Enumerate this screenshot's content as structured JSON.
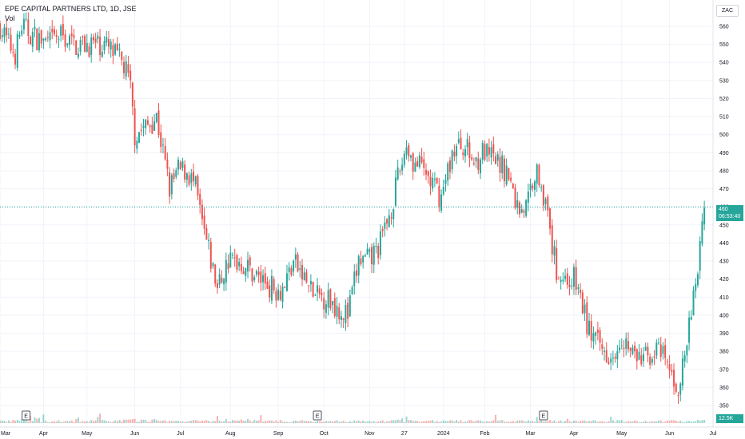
{
  "header": {
    "title": "EPE CAPITAL PARTNERS LTD, 1D, JSE",
    "volume_label": "Vol",
    "currency": "ZAC"
  },
  "last_price": {
    "value": "460",
    "countdown": "06:53:40"
  },
  "volume_readout": "12.5K",
  "colors": {
    "up": "#26a69a",
    "down": "#ef5350",
    "grid": "#f0f3fa",
    "text": "#131722"
  },
  "chart_data": {
    "type": "candlestick",
    "y_axis": {
      "min": 345,
      "max": 565,
      "ticks": [
        350,
        360,
        370,
        380,
        390,
        400,
        410,
        420,
        430,
        440,
        450,
        460,
        470,
        480,
        490,
        500,
        510,
        520,
        530,
        540,
        550,
        560
      ]
    },
    "x_axis": {
      "labels": [
        "Mar",
        "Apr",
        "May",
        "Jun",
        "Jul",
        "Aug",
        "Sep",
        "Oct",
        "Nov",
        "27",
        "2024",
        "Feb",
        "Mar",
        "Apr",
        "May",
        "Jun",
        "Jul"
      ],
      "positions": [
        0,
        20,
        40,
        62,
        83,
        106,
        128,
        149,
        170,
        186,
        204,
        223,
        244,
        264,
        286,
        308,
        328
      ]
    },
    "earnings_markers": [
      {
        "x": 12,
        "label": "E"
      },
      {
        "x": 146,
        "label": "E"
      },
      {
        "x": 250,
        "label": "E"
      }
    ],
    "last_price": 460,
    "anchors": [
      [
        0,
        560,
        0.6
      ],
      [
        4,
        550,
        0.5
      ],
      [
        7,
        545,
        1.0
      ],
      [
        10,
        560,
        0.8
      ],
      [
        15,
        555,
        1.8
      ],
      [
        22,
        550,
        0.5
      ],
      [
        28,
        555,
        0.5
      ],
      [
        34,
        550,
        0.6
      ],
      [
        40,
        550,
        0.6
      ],
      [
        48,
        550,
        0.6
      ],
      [
        52,
        545,
        0.8
      ],
      [
        56,
        540,
        0.8
      ],
      [
        58,
        535,
        0.8
      ],
      [
        60,
        525,
        0.8
      ],
      [
        62,
        500,
        0.9
      ],
      [
        68,
        505,
        0.9
      ],
      [
        72,
        510,
        0.8
      ],
      [
        75,
        490,
        0.6
      ],
      [
        78,
        470,
        0.6
      ],
      [
        82,
        480,
        0.6
      ],
      [
        86,
        480,
        0.5
      ],
      [
        90,
        470,
        0.6
      ],
      [
        93,
        450,
        0.6
      ],
      [
        97,
        430,
        0.6
      ],
      [
        100,
        415,
        0.6
      ],
      [
        105,
        430,
        0.8
      ],
      [
        110,
        430,
        0.6
      ],
      [
        115,
        425,
        1.0
      ],
      [
        120,
        420,
        0.5
      ],
      [
        126,
        415,
        0.6
      ],
      [
        130,
        415,
        0.6
      ],
      [
        135,
        430,
        0.6
      ],
      [
        140,
        420,
        0.6
      ],
      [
        145,
        410,
        0.5
      ],
      [
        150,
        410,
        0.5
      ],
      [
        155,
        405,
        0.5
      ],
      [
        160,
        400,
        0.5
      ],
      [
        165,
        430,
        0.6
      ],
      [
        170,
        430,
        0.4
      ],
      [
        175,
        440,
        0.5
      ],
      [
        180,
        460,
        0.6
      ],
      [
        184,
        480,
        0.7
      ],
      [
        187,
        495,
        1.6
      ],
      [
        190,
        485,
        0.8
      ],
      [
        195,
        480,
        0.7
      ],
      [
        200,
        470,
        0.6
      ],
      [
        203,
        465,
        0.5
      ],
      [
        208,
        490,
        0.6
      ],
      [
        213,
        495,
        0.6
      ],
      [
        218,
        485,
        0.6
      ],
      [
        222,
        490,
        0.5
      ],
      [
        228,
        485,
        0.6
      ],
      [
        233,
        480,
        0.5
      ],
      [
        238,
        460,
        0.6
      ],
      [
        242,
        460,
        0.5
      ],
      [
        246,
        480,
        0.6
      ],
      [
        249,
        475,
        0.6
      ],
      [
        251,
        460,
        0.6
      ],
      [
        253,
        445,
        0.6
      ],
      [
        256,
        425,
        0.6
      ],
      [
        260,
        420,
        0.5
      ],
      [
        264,
        420,
        0.5
      ],
      [
        267,
        410,
        0.5
      ],
      [
        270,
        395,
        0.5
      ],
      [
        274,
        385,
        0.6
      ],
      [
        278,
        380,
        0.5
      ],
      [
        282,
        380,
        0.5
      ],
      [
        286,
        390,
        0.6
      ],
      [
        290,
        380,
        0.5
      ],
      [
        294,
        375,
        0.5
      ],
      [
        298,
        378,
        0.6
      ],
      [
        302,
        380,
        0.5
      ],
      [
        306,
        375,
        0.5
      ],
      [
        309,
        365,
        0.8
      ],
      [
        312,
        360,
        0.5
      ],
      [
        314,
        370,
        0.6
      ],
      [
        316,
        385,
        0.8
      ],
      [
        318,
        400,
        1.0
      ],
      [
        320,
        420,
        0.6
      ],
      [
        321,
        425,
        0.7
      ],
      [
        322,
        440,
        0.6
      ],
      [
        323,
        455,
        0.6
      ],
      [
        324,
        460,
        0.6
      ]
    ]
  }
}
